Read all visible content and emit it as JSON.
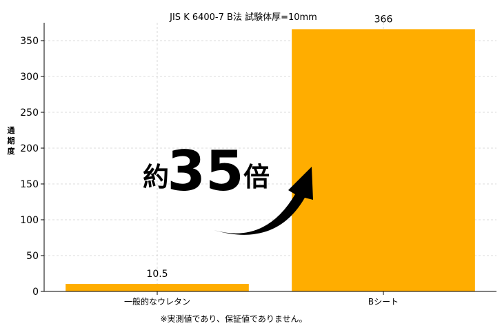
{
  "chart_data": {
    "type": "bar",
    "title": "JIS K 6400-7 B法 試験体厚=10mm",
    "ylabel": "通期度",
    "xlabel": "",
    "categories": [
      "一般的なウレタン",
      "Bシート"
    ],
    "values": [
      10.5,
      366
    ],
    "data_labels": [
      "10.5",
      "366"
    ],
    "ylim": [
      0,
      375
    ],
    "yticks": [
      0,
      50,
      100,
      150,
      200,
      250,
      300,
      350
    ],
    "ytick_labels": [
      "0",
      "50",
      "100",
      "150",
      "200",
      "250",
      "300",
      "350"
    ],
    "grid": true,
    "legend": "none",
    "bar_color": "#FFAD00",
    "annotation": {
      "prefix": "約",
      "number": "35",
      "suffix": "倍"
    },
    "footnote": "※実測値であり、保証値でありません。"
  }
}
